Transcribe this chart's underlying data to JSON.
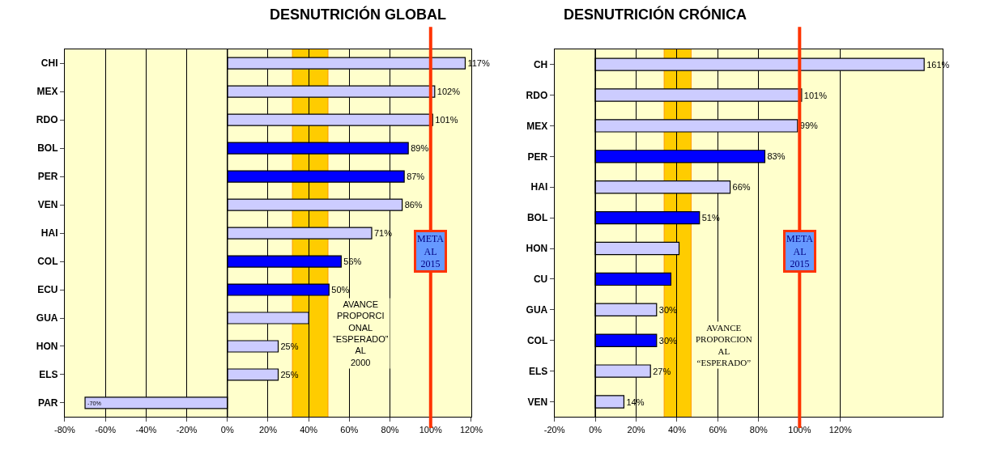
{
  "chart_data": [
    {
      "type": "bar",
      "orientation": "horizontal",
      "title": "DESNUTRICIÓN GLOBAL",
      "categories": [
        "CHI",
        "MEX",
        "RDO",
        "BOL",
        "PER",
        "VEN",
        "HAI",
        "COL",
        "ECU",
        "GUA",
        "HON",
        "ELS",
        "PAR"
      ],
      "series": [
        {
          "values": [
            117,
            102,
            101,
            89,
            87,
            86,
            71,
            56,
            50,
            40,
            25,
            25,
            -70
          ],
          "colors": [
            "#ccccff",
            "#ccccff",
            "#ccccff",
            "#0000ff",
            "#0000ff",
            "#ccccff",
            "#ccccff",
            "#0000ff",
            "#0000ff",
            "#ccccff",
            "#ccccff",
            "#ccccff",
            "#ccccff"
          ],
          "value_labels": [
            "117%",
            "102%",
            "101%",
            "89%",
            "87%",
            "86%",
            "71%",
            "56%",
            "50%",
            null,
            "25%",
            "25%",
            "-70%"
          ]
        }
      ],
      "xlim": [
        -80,
        120
      ],
      "xticks": [
        {
          "value": -80,
          "label": "-80%"
        },
        {
          "value": -60,
          "label": "-60%"
        },
        {
          "value": -40,
          "label": "-40%"
        },
        {
          "value": -20,
          "label": "-20%"
        },
        {
          "value": 0,
          "label": "0%"
        },
        {
          "value": 20,
          "label": "20%"
        },
        {
          "value": 40,
          "label": "40%"
        },
        {
          "value": 60,
          "label": "60%"
        },
        {
          "value": 80,
          "label": "80%"
        },
        {
          "value": 100,
          "label": "100%"
        },
        {
          "value": 120,
          "label": "120%"
        }
      ],
      "grid": "x",
      "bands": [
        {
          "axis": "x",
          "from": 32,
          "to": 49.5,
          "label": "AVANCE PROPORCI ONAL “ESPERADO” AL 2000",
          "color": "#ffcc00"
        }
      ],
      "ref_lines": [
        {
          "axis": "x",
          "value": 100,
          "label": "META AL 2015",
          "color": "#ff3300"
        }
      ]
    },
    {
      "type": "bar",
      "orientation": "horizontal",
      "title": "DESNUTRICIÓN CRÓNICA",
      "categories": [
        "CH",
        "RDO",
        "MEX",
        "PER",
        "HAI",
        "BOL",
        "HON",
        "CU",
        "GUA",
        "COL",
        "ELS",
        "VEN"
      ],
      "series": [
        {
          "values": [
            161,
            101,
            99,
            83,
            66,
            51,
            41,
            37,
            30,
            30,
            27,
            14
          ],
          "colors": [
            "#ccccff",
            "#ccccff",
            "#ccccff",
            "#0000ff",
            "#ccccff",
            "#0000ff",
            "#ccccff",
            "#0000ff",
            "#ccccff",
            "#0000ff",
            "#ccccff",
            "#ccccff"
          ],
          "value_labels": [
            "161%",
            "101%",
            "99%",
            "83%",
            "66%",
            "51%",
            null,
            null,
            "30%",
            "30%",
            "27%",
            "14%"
          ]
        }
      ],
      "xlim": [
        -20,
        170
      ],
      "xticks": [
        {
          "value": -20,
          "label": "-20%"
        },
        {
          "value": 0,
          "label": "0%"
        },
        {
          "value": 20,
          "label": "20%"
        },
        {
          "value": 40,
          "label": "40%"
        },
        {
          "value": 60,
          "label": "60%"
        },
        {
          "value": 80,
          "label": "80%"
        },
        {
          "value": 100,
          "label": "100%"
        },
        {
          "value": 120,
          "label": "120%"
        }
      ],
      "grid": "x",
      "bands": [
        {
          "axis": "x",
          "from": 33.7,
          "to": 46.9,
          "label": "AVANCE PROPORCION AL “ESPERADO”",
          "color": "#ffcc00"
        }
      ],
      "ref_lines": [
        {
          "axis": "x",
          "value": 100,
          "label": "META AL 2015",
          "color": "#ff3300"
        }
      ]
    }
  ]
}
